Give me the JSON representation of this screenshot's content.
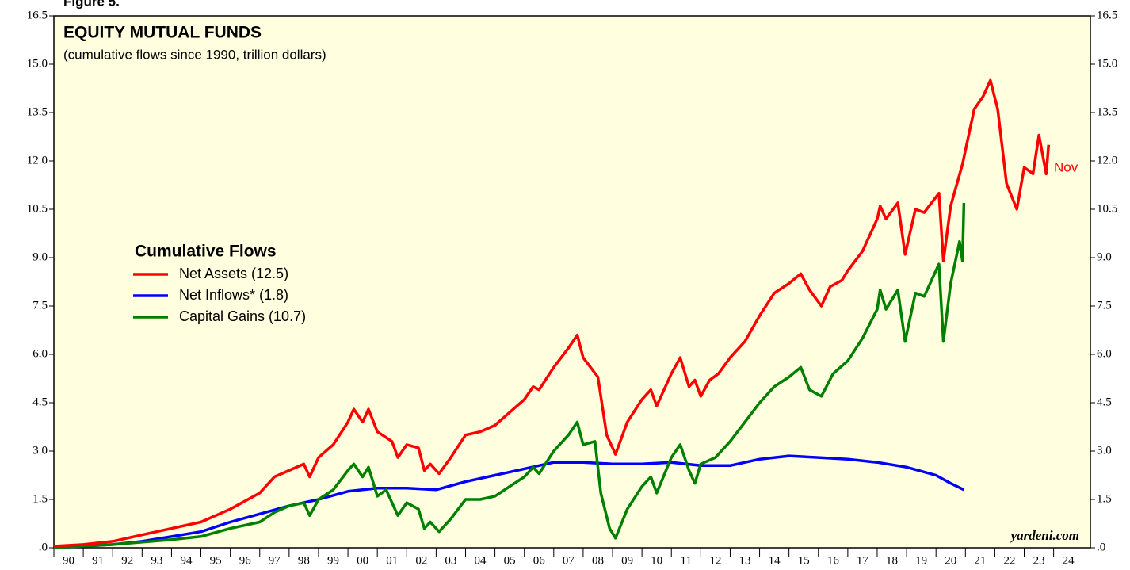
{
  "chart_data": {
    "type": "line",
    "figure_label": "Figure 5.",
    "title": "EQUITY MUTUAL FUNDS",
    "subtitle": "(cumulative flows since 1990, trillion dollars)",
    "legend_title": "Cumulative Flows",
    "annotation": "Nov",
    "source": "yardeni.com",
    "xlim": [
      1990,
      2025.25
    ],
    "ylim": [
      0,
      16.5
    ],
    "yticks": [
      {
        "value": 0,
        "label": ".0"
      },
      1.5,
      {
        "value": 3,
        "label": "3.0"
      },
      4.5,
      {
        "value": 6,
        "label": "6.0"
      },
      7.5,
      {
        "value": 9,
        "label": "9.0"
      },
      10.5,
      {
        "value": 12,
        "label": "12.0"
      },
      13.5,
      {
        "value": 15,
        "label": "15.0"
      },
      16.5
    ],
    "xticks": [
      {
        "value": 1990,
        "label": "90"
      },
      {
        "value": 1991,
        "label": "91"
      },
      {
        "value": 1992,
        "label": "92"
      },
      {
        "value": 1993,
        "label": "93"
      },
      {
        "value": 1994,
        "label": "94"
      },
      {
        "value": 1995,
        "label": "95"
      },
      {
        "value": 1996,
        "label": "96"
      },
      {
        "value": 1997,
        "label": "97"
      },
      {
        "value": 1998,
        "label": "98"
      },
      {
        "value": 1999,
        "label": "99"
      },
      {
        "value": 2000,
        "label": "00"
      },
      {
        "value": 2001,
        "label": "01"
      },
      {
        "value": 2002,
        "label": "02"
      },
      {
        "value": 2003,
        "label": "03"
      },
      {
        "value": 2004,
        "label": "04"
      },
      {
        "value": 2005,
        "label": "05"
      },
      {
        "value": 2006,
        "label": "06"
      },
      {
        "value": 2007,
        "label": "07"
      },
      {
        "value": 2008,
        "label": "08"
      },
      {
        "value": 2009,
        "label": "09"
      },
      {
        "value": 2010,
        "label": "10"
      },
      {
        "value": 2011,
        "label": "11"
      },
      {
        "value": 2012,
        "label": "12"
      },
      {
        "value": 2013,
        "label": "13"
      },
      {
        "value": 2014,
        "label": "14"
      },
      {
        "value": 2015,
        "label": "15"
      },
      {
        "value": 2016,
        "label": "16"
      },
      {
        "value": 2017,
        "label": "17"
      },
      {
        "value": 2018,
        "label": "18"
      },
      {
        "value": 2019,
        "label": "19"
      },
      {
        "value": 2020,
        "label": "20"
      },
      {
        "value": 2021,
        "label": "21"
      },
      {
        "value": 2022,
        "label": "22"
      },
      {
        "value": 2023,
        "label": "23"
      },
      {
        "value": 2024,
        "label": "24"
      }
    ],
    "series": [
      {
        "name": "Net Assets (12.5)",
        "color": "#ff0000",
        "x": [
          1990,
          1991,
          1992,
          1993,
          1994,
          1995,
          1996,
          1997,
          1997.5,
          1998,
          1998.5,
          1998.7,
          1999,
          1999.5,
          2000,
          2000.2,
          2000.5,
          2000.7,
          2001,
          2001.5,
          2001.7,
          2002,
          2002.4,
          2002.6,
          2002.8,
          2003.1,
          2003.5,
          2004,
          2004.5,
          2005,
          2005.5,
          2006,
          2006.3,
          2006.5,
          2007,
          2007.5,
          2007.8,
          2008,
          2008.5,
          2008.8,
          2009.1,
          2009.5,
          2010,
          2010.3,
          2010.5,
          2011,
          2011.3,
          2011.6,
          2011.8,
          2012,
          2012.3,
          2012.6,
          2013,
          2013.5,
          2014,
          2014.5,
          2015,
          2015.4,
          2015.7,
          2016.1,
          2016.4,
          2016.8,
          2017,
          2017.5,
          2018,
          2018.1,
          2018.3,
          2018.7,
          2018.95,
          2019.3,
          2019.6,
          2020.1,
          2020.25,
          2020.5,
          2020.9,
          2021.3,
          2021.6,
          2021.85,
          2022.1,
          2022.4,
          2022.75,
          2023,
          2023.3,
          2023.5,
          2023.75,
          2023.83
        ],
        "values": [
          0.05,
          0.1,
          0.2,
          0.4,
          0.6,
          0.8,
          1.2,
          1.7,
          2.2,
          2.4,
          2.6,
          2.2,
          2.8,
          3.2,
          3.9,
          4.3,
          3.9,
          4.3,
          3.6,
          3.3,
          2.8,
          3.2,
          3.1,
          2.4,
          2.6,
          2.3,
          2.8,
          3.5,
          3.6,
          3.8,
          4.2,
          4.6,
          5.0,
          4.9,
          5.6,
          6.2,
          6.6,
          5.9,
          5.3,
          3.5,
          2.9,
          3.9,
          4.6,
          4.9,
          4.4,
          5.4,
          5.9,
          5.0,
          5.2,
          4.7,
          5.2,
          5.4,
          5.9,
          6.4,
          7.2,
          7.9,
          8.2,
          8.5,
          8.0,
          7.5,
          8.1,
          8.3,
          8.6,
          9.2,
          10.2,
          10.6,
          10.2,
          10.7,
          9.1,
          10.5,
          10.4,
          11.0,
          8.9,
          10.6,
          11.9,
          13.6,
          14.0,
          14.5,
          13.6,
          11.3,
          10.5,
          11.8,
          11.6,
          12.8,
          11.6,
          12.5
        ]
      },
      {
        "name": "Net Inflows* (1.8)",
        "color": "#0000ff",
        "x": [
          1990,
          1991,
          1992,
          1993,
          1994,
          1995,
          1996,
          1997,
          1998,
          1999,
          2000,
          2001,
          2002,
          2003,
          2004,
          2005,
          2006,
          2007,
          2008,
          2009,
          2010,
          2011,
          2012,
          2013,
          2014,
          2015,
          2016,
          2017,
          2018,
          2019,
          2020,
          2020.5,
          2020.95
        ],
        "values": [
          0.0,
          0.05,
          0.1,
          0.2,
          0.35,
          0.5,
          0.8,
          1.05,
          1.3,
          1.5,
          1.75,
          1.85,
          1.85,
          1.8,
          2.05,
          2.25,
          2.45,
          2.65,
          2.65,
          2.6,
          2.6,
          2.65,
          2.55,
          2.55,
          2.75,
          2.85,
          2.8,
          2.75,
          2.65,
          2.5,
          2.25,
          2.0,
          1.8
        ]
      },
      {
        "name": "Capital Gains (10.7)",
        "color": "#008000",
        "x": [
          1990,
          1992,
          1994,
          1995,
          1996,
          1997,
          1997.5,
          1998,
          1998.5,
          1998.7,
          1999,
          1999.5,
          2000,
          2000.2,
          2000.5,
          2000.7,
          2001,
          2001.3,
          2001.7,
          2002,
          2002.4,
          2002.6,
          2002.8,
          2003.1,
          2003.5,
          2004,
          2004.5,
          2005,
          2005.5,
          2006,
          2006.3,
          2006.5,
          2007,
          2007.5,
          2007.8,
          2008,
          2008.4,
          2008.6,
          2008.9,
          2009.1,
          2009.5,
          2010,
          2010.3,
          2010.5,
          2011,
          2011.3,
          2011.6,
          2011.8,
          2012,
          2012.5,
          2013,
          2013.5,
          2014,
          2014.5,
          2015,
          2015.4,
          2015.7,
          2016.1,
          2016.5,
          2017,
          2017.5,
          2018,
          2018.1,
          2018.3,
          2018.7,
          2018.95,
          2019.3,
          2019.6,
          2020.1,
          2020.25,
          2020.5,
          2020.8,
          2020.9,
          2020.95
        ],
        "values": [
          0.0,
          0.1,
          0.25,
          0.35,
          0.6,
          0.8,
          1.1,
          1.3,
          1.4,
          1.0,
          1.5,
          1.8,
          2.4,
          2.6,
          2.2,
          2.5,
          1.6,
          1.8,
          1.0,
          1.4,
          1.2,
          0.6,
          0.8,
          0.5,
          0.9,
          1.5,
          1.5,
          1.6,
          1.9,
          2.2,
          2.5,
          2.3,
          3.0,
          3.5,
          3.9,
          3.2,
          3.3,
          1.7,
          0.6,
          0.3,
          1.2,
          1.9,
          2.2,
          1.7,
          2.8,
          3.2,
          2.4,
          2.0,
          2.6,
          2.8,
          3.3,
          3.9,
          4.5,
          5.0,
          5.3,
          5.6,
          4.9,
          4.7,
          5.4,
          5.8,
          6.5,
          7.4,
          8.0,
          7.4,
          8.0,
          6.4,
          7.9,
          7.8,
          8.8,
          6.4,
          8.2,
          9.5,
          8.9,
          10.7
        ]
      }
    ]
  }
}
